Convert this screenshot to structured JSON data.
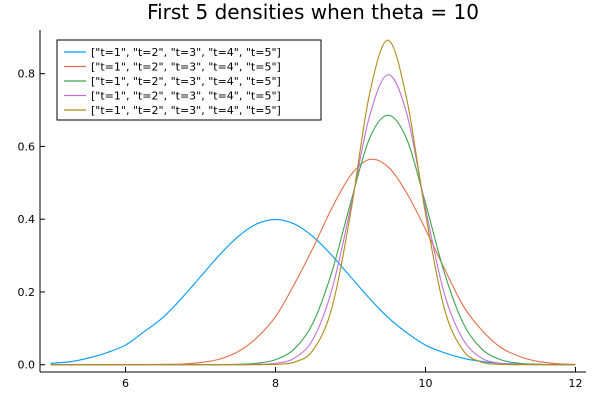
{
  "chart_data": {
    "type": "line",
    "title": "First 5 densities when theta = 10",
    "xlabel": "",
    "ylabel": "",
    "xlim": [
      4.86,
      12.14
    ],
    "ylim": [
      -0.02,
      0.92
    ],
    "xticks": [
      6,
      8,
      10,
      12
    ],
    "yticks": [
      0.0,
      0.2,
      0.4,
      0.6,
      0.8
    ],
    "xtick_labels": [
      "6",
      "8",
      "10",
      "12"
    ],
    "ytick_labels": [
      "0.0",
      "0.2",
      "0.4",
      "0.6",
      "0.8"
    ],
    "grid": false,
    "legend_position": "top-left",
    "x": [
      5.0,
      5.25,
      5.5,
      5.75,
      6.0,
      6.25,
      6.5,
      6.75,
      7.0,
      7.25,
      7.5,
      7.75,
      8.0,
      8.25,
      8.5,
      8.75,
      9.0,
      9.25,
      9.5,
      9.75,
      10.0,
      10.25,
      10.5,
      10.75,
      11.0,
      11.25,
      11.5,
      11.75,
      12.0
    ],
    "series": [
      {
        "name": "[\"t=1\", \"t=2\", \"t=3\", \"t=4\", \"t=5\"]",
        "color": "#009AFA",
        "values": [
          0.004,
          0.008,
          0.018,
          0.033,
          0.054,
          0.091,
          0.13,
          0.183,
          0.242,
          0.301,
          0.352,
          0.387,
          0.399,
          0.387,
          0.352,
          0.301,
          0.242,
          0.183,
          0.13,
          0.088,
          0.054,
          0.033,
          0.018,
          0.009,
          0.004,
          0.002,
          0.001,
          0.0,
          0.0
        ]
      },
      {
        "name": "[\"t=1\", \"t=2\", \"t=3\", \"t=4\", \"t=5\"]",
        "color": "#E36F47",
        "values": [
          0.0,
          0.0,
          0.0,
          0.0,
          0.0,
          0.0,
          0.001,
          0.002,
          0.006,
          0.015,
          0.036,
          0.074,
          0.132,
          0.221,
          0.321,
          0.43,
          0.52,
          0.564,
          0.544,
          0.472,
          0.372,
          0.265,
          0.163,
          0.095,
          0.048,
          0.023,
          0.009,
          0.003,
          0.001
        ]
      },
      {
        "name": "[\"t=1\", \"t=2\", \"t=3\", \"t=4\", \"t=5\"]",
        "color": "#3EA44E",
        "values": [
          0.0,
          0.0,
          0.0,
          0.0,
          0.0,
          0.0,
          0.0,
          0.0,
          0.0,
          0.0,
          0.001,
          0.004,
          0.014,
          0.043,
          0.115,
          0.254,
          0.444,
          0.62,
          0.686,
          0.62,
          0.444,
          0.254,
          0.115,
          0.043,
          0.014,
          0.004,
          0.001,
          0.0,
          0.0
        ]
      },
      {
        "name": "[\"t=1\", \"t=2\", \"t=3\", \"t=4\", \"t=5\"]",
        "color": "#C271D2",
        "values": [
          0.0,
          0.0,
          0.0,
          0.0,
          0.0,
          0.0,
          0.0,
          0.0,
          0.0,
          0.0,
          0.0,
          0.001,
          0.004,
          0.018,
          0.07,
          0.205,
          0.43,
          0.68,
          0.797,
          0.69,
          0.43,
          0.196,
          0.07,
          0.018,
          0.004,
          0.001,
          0.0,
          0.0,
          0.0
        ]
      },
      {
        "name": "[\"t=1\", \"t=2\", \"t=3\", \"t=4\", \"t=5\"]",
        "color": "#AC8D18",
        "values": [
          0.0,
          0.0,
          0.0,
          0.0,
          0.0,
          0.0,
          0.0,
          0.0,
          0.0,
          0.0,
          0.0,
          0.0,
          0.001,
          0.007,
          0.04,
          0.155,
          0.415,
          0.74,
          0.892,
          0.73,
          0.415,
          0.155,
          0.04,
          0.007,
          0.001,
          0.0,
          0.0,
          0.0,
          0.0
        ]
      }
    ]
  }
}
